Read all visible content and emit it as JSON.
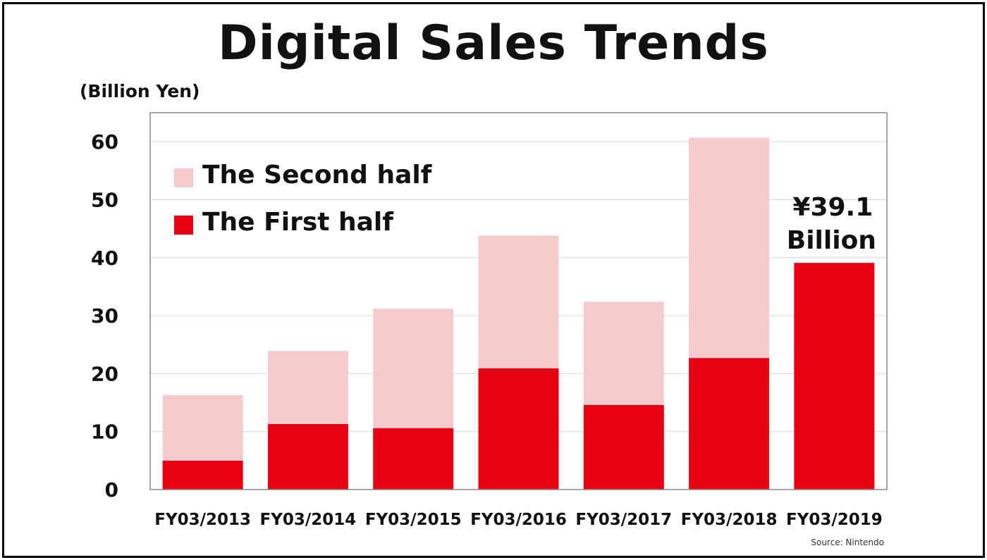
{
  "title": "Digital Sales Trends",
  "unit_label": "(Billion Yen)",
  "source": "Source: Nintendo",
  "colors": {
    "first_half": "#e60012",
    "second_half": "#f7cbcd",
    "grid": "#d9d9d9",
    "border": "#888888"
  },
  "chart_data": {
    "type": "bar",
    "stacked": true,
    "categories": [
      "FY03/2013",
      "FY03/2014",
      "FY03/2015",
      "FY03/2016",
      "FY03/2017",
      "FY03/2018",
      "FY03/2019"
    ],
    "series": [
      {
        "name": "The First half",
        "values": [
          5.0,
          11.3,
          10.6,
          20.9,
          14.6,
          22.7,
          39.1
        ]
      },
      {
        "name": "The Second half",
        "values": [
          11.3,
          12.6,
          20.6,
          22.9,
          17.8,
          38.0,
          0
        ]
      }
    ],
    "ylim": [
      0,
      65
    ],
    "yticks": [
      0,
      10,
      20,
      30,
      40,
      50,
      60
    ],
    "grid": true,
    "legend": "top-left",
    "annotation": {
      "category": "FY03/2019",
      "line1": "¥39.1",
      "line2": "Billion"
    }
  }
}
